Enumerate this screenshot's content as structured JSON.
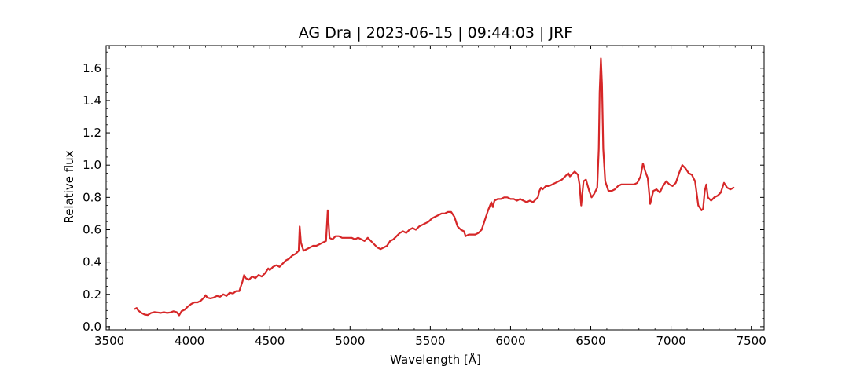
{
  "chart_data": {
    "type": "line",
    "title": "AG Dra | 2023-06-15 | 09:44:03 | JRF",
    "xlabel": "Wavelength [Å]",
    "ylabel": "Relative flux",
    "xlim": [
      3480,
      7580
    ],
    "ylim": [
      -0.02,
      1.74
    ],
    "x_ticks": [
      3500,
      4000,
      4500,
      5000,
      5500,
      6000,
      6500,
      7000,
      7500
    ],
    "x_tick_labels": [
      "3500",
      "4000",
      "4500",
      "5000",
      "5500",
      "6000",
      "6500",
      "7000",
      "7500"
    ],
    "y_ticks": [
      0.0,
      0.2,
      0.4,
      0.6,
      0.8,
      1.0,
      1.2,
      1.4,
      1.6
    ],
    "y_tick_labels": [
      "0.0",
      "0.2",
      "0.4",
      "0.6",
      "0.8",
      "1.0",
      "1.2",
      "1.4",
      "1.6"
    ],
    "grid": false,
    "legend": "none",
    "series": [
      {
        "color": "#d62728",
        "points": [
          [
            3660,
            0.11
          ],
          [
            3670,
            0.115
          ],
          [
            3680,
            0.1
          ],
          [
            3700,
            0.085
          ],
          [
            3720,
            0.075
          ],
          [
            3740,
            0.072
          ],
          [
            3760,
            0.085
          ],
          [
            3780,
            0.09
          ],
          [
            3800,
            0.088
          ],
          [
            3820,
            0.085
          ],
          [
            3840,
            0.09
          ],
          [
            3860,
            0.085
          ],
          [
            3880,
            0.088
          ],
          [
            3900,
            0.095
          ],
          [
            3920,
            0.09
          ],
          [
            3935,
            0.07
          ],
          [
            3950,
            0.095
          ],
          [
            3970,
            0.105
          ],
          [
            3990,
            0.125
          ],
          [
            4010,
            0.14
          ],
          [
            4030,
            0.15
          ],
          [
            4050,
            0.15
          ],
          [
            4070,
            0.16
          ],
          [
            4090,
            0.18
          ],
          [
            4100,
            0.195
          ],
          [
            4110,
            0.18
          ],
          [
            4130,
            0.175
          ],
          [
            4150,
            0.18
          ],
          [
            4170,
            0.19
          ],
          [
            4190,
            0.185
          ],
          [
            4210,
            0.2
          ],
          [
            4230,
            0.19
          ],
          [
            4250,
            0.21
          ],
          [
            4270,
            0.205
          ],
          [
            4290,
            0.22
          ],
          [
            4310,
            0.22
          ],
          [
            4330,
            0.28
          ],
          [
            4340,
            0.32
          ],
          [
            4350,
            0.3
          ],
          [
            4370,
            0.29
          ],
          [
            4390,
            0.31
          ],
          [
            4410,
            0.3
          ],
          [
            4430,
            0.32
          ],
          [
            4450,
            0.31
          ],
          [
            4470,
            0.33
          ],
          [
            4490,
            0.36
          ],
          [
            4500,
            0.35
          ],
          [
            4520,
            0.37
          ],
          [
            4540,
            0.38
          ],
          [
            4560,
            0.37
          ],
          [
            4580,
            0.39
          ],
          [
            4600,
            0.41
          ],
          [
            4620,
            0.42
          ],
          [
            4640,
            0.44
          ],
          [
            4660,
            0.45
          ],
          [
            4680,
            0.47
          ],
          [
            4686,
            0.62
          ],
          [
            4694,
            0.52
          ],
          [
            4710,
            0.47
          ],
          [
            4730,
            0.48
          ],
          [
            4750,
            0.49
          ],
          [
            4770,
            0.5
          ],
          [
            4790,
            0.5
          ],
          [
            4810,
            0.51
          ],
          [
            4830,
            0.52
          ],
          [
            4850,
            0.53
          ],
          [
            4861,
            0.72
          ],
          [
            4872,
            0.55
          ],
          [
            4890,
            0.54
          ],
          [
            4910,
            0.56
          ],
          [
            4930,
            0.56
          ],
          [
            4950,
            0.55
          ],
          [
            4970,
            0.55
          ],
          [
            4990,
            0.55
          ],
          [
            5010,
            0.55
          ],
          [
            5030,
            0.54
          ],
          [
            5050,
            0.55
          ],
          [
            5070,
            0.54
          ],
          [
            5090,
            0.53
          ],
          [
            5110,
            0.55
          ],
          [
            5130,
            0.53
          ],
          [
            5150,
            0.51
          ],
          [
            5170,
            0.49
          ],
          [
            5190,
            0.48
          ],
          [
            5210,
            0.49
          ],
          [
            5230,
            0.5
          ],
          [
            5250,
            0.53
          ],
          [
            5270,
            0.54
          ],
          [
            5290,
            0.56
          ],
          [
            5310,
            0.58
          ],
          [
            5330,
            0.59
          ],
          [
            5350,
            0.58
          ],
          [
            5370,
            0.6
          ],
          [
            5390,
            0.61
          ],
          [
            5410,
            0.6
          ],
          [
            5430,
            0.62
          ],
          [
            5450,
            0.63
          ],
          [
            5470,
            0.64
          ],
          [
            5490,
            0.65
          ],
          [
            5510,
            0.67
          ],
          [
            5530,
            0.68
          ],
          [
            5550,
            0.69
          ],
          [
            5570,
            0.7
          ],
          [
            5590,
            0.7
          ],
          [
            5610,
            0.71
          ],
          [
            5630,
            0.71
          ],
          [
            5650,
            0.68
          ],
          [
            5670,
            0.62
          ],
          [
            5690,
            0.6
          ],
          [
            5710,
            0.59
          ],
          [
            5720,
            0.56
          ],
          [
            5740,
            0.57
          ],
          [
            5760,
            0.57
          ],
          [
            5780,
            0.57
          ],
          [
            5800,
            0.58
          ],
          [
            5820,
            0.6
          ],
          [
            5840,
            0.66
          ],
          [
            5860,
            0.72
          ],
          [
            5880,
            0.77
          ],
          [
            5890,
            0.74
          ],
          [
            5900,
            0.78
          ],
          [
            5920,
            0.79
          ],
          [
            5940,
            0.79
          ],
          [
            5960,
            0.8
          ],
          [
            5980,
            0.8
          ],
          [
            6000,
            0.79
          ],
          [
            6020,
            0.79
          ],
          [
            6040,
            0.78
          ],
          [
            6060,
            0.79
          ],
          [
            6080,
            0.78
          ],
          [
            6100,
            0.77
          ],
          [
            6120,
            0.78
          ],
          [
            6140,
            0.77
          ],
          [
            6160,
            0.79
          ],
          [
            6170,
            0.8
          ],
          [
            6180,
            0.84
          ],
          [
            6190,
            0.86
          ],
          [
            6200,
            0.85
          ],
          [
            6220,
            0.87
          ],
          [
            6240,
            0.87
          ],
          [
            6260,
            0.88
          ],
          [
            6280,
            0.89
          ],
          [
            6300,
            0.9
          ],
          [
            6320,
            0.91
          ],
          [
            6340,
            0.93
          ],
          [
            6360,
            0.95
          ],
          [
            6370,
            0.93
          ],
          [
            6380,
            0.94
          ],
          [
            6400,
            0.96
          ],
          [
            6420,
            0.94
          ],
          [
            6430,
            0.88
          ],
          [
            6440,
            0.75
          ],
          [
            6455,
            0.9
          ],
          [
            6470,
            0.91
          ],
          [
            6490,
            0.84
          ],
          [
            6505,
            0.8
          ],
          [
            6520,
            0.82
          ],
          [
            6540,
            0.86
          ],
          [
            6550,
            1.1
          ],
          [
            6555,
            1.45
          ],
          [
            6563,
            1.66
          ],
          [
            6570,
            1.5
          ],
          [
            6578,
            1.1
          ],
          [
            6590,
            0.9
          ],
          [
            6610,
            0.84
          ],
          [
            6630,
            0.84
          ],
          [
            6650,
            0.85
          ],
          [
            6670,
            0.87
          ],
          [
            6690,
            0.88
          ],
          [
            6710,
            0.88
          ],
          [
            6730,
            0.88
          ],
          [
            6750,
            0.88
          ],
          [
            6770,
            0.88
          ],
          [
            6790,
            0.89
          ],
          [
            6810,
            0.93
          ],
          [
            6825,
            1.01
          ],
          [
            6840,
            0.96
          ],
          [
            6855,
            0.92
          ],
          [
            6870,
            0.76
          ],
          [
            6880,
            0.8
          ],
          [
            6890,
            0.84
          ],
          [
            6910,
            0.85
          ],
          [
            6930,
            0.83
          ],
          [
            6950,
            0.87
          ],
          [
            6970,
            0.9
          ],
          [
            6990,
            0.88
          ],
          [
            7010,
            0.87
          ],
          [
            7030,
            0.89
          ],
          [
            7050,
            0.95
          ],
          [
            7070,
            1.0
          ],
          [
            7090,
            0.98
          ],
          [
            7110,
            0.95
          ],
          [
            7130,
            0.94
          ],
          [
            7150,
            0.9
          ],
          [
            7170,
            0.75
          ],
          [
            7190,
            0.72
          ],
          [
            7200,
            0.73
          ],
          [
            7210,
            0.84
          ],
          [
            7220,
            0.88
          ],
          [
            7230,
            0.8
          ],
          [
            7250,
            0.78
          ],
          [
            7270,
            0.8
          ],
          [
            7290,
            0.81
          ],
          [
            7310,
            0.83
          ],
          [
            7330,
            0.89
          ],
          [
            7350,
            0.86
          ],
          [
            7370,
            0.85
          ],
          [
            7390,
            0.86
          ]
        ]
      }
    ]
  }
}
